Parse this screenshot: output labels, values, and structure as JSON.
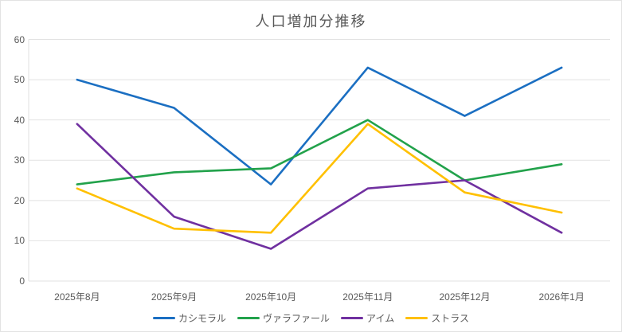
{
  "chart_data": {
    "type": "line",
    "title": "人口増加分推移",
    "categories": [
      "2025年8月",
      "2025年9月",
      "2025年10月",
      "2025年11月",
      "2025年12月",
      "2026年1月"
    ],
    "series": [
      {
        "name": "カシモラル",
        "color": "#1B6FC2",
        "values": [
          50,
          43,
          24,
          53,
          41,
          53
        ]
      },
      {
        "name": "ヴァラファール",
        "color": "#22A24B",
        "values": [
          24,
          27,
          28,
          40,
          25,
          29
        ]
      },
      {
        "name": "アイム",
        "color": "#7030A0",
        "values": [
          39,
          16,
          8,
          23,
          25,
          12
        ]
      },
      {
        "name": "ストラス",
        "color": "#FFC000",
        "values": [
          23,
          13,
          12,
          39,
          22,
          17
        ]
      }
    ],
    "ylim": [
      0,
      60
    ],
    "yticks": [
      0,
      10,
      20,
      30,
      40,
      50,
      60
    ],
    "grid": true,
    "gridline_color": "#e2e2e2",
    "axis_text_color": "#595959",
    "legend_position": "bottom"
  }
}
